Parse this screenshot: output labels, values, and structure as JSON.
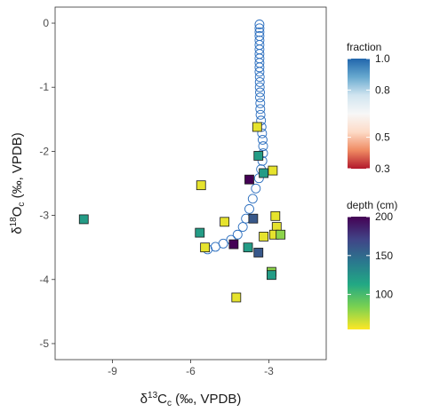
{
  "chart_data": {
    "type": "scatter",
    "xlabel": "δ13Cc (‰, VPDB)",
    "ylabel": "δ18Oc (‰, VPDB)",
    "xlim": [
      -11.2,
      -0.8
    ],
    "ylim": [
      -5.25,
      0.25
    ],
    "x_ticks": [
      -9,
      -6,
      -3
    ],
    "y_ticks": [
      0,
      -1,
      -2,
      -3,
      -4,
      -5
    ],
    "grid": false,
    "fraction_series": {
      "name": "fraction",
      "marker": "open circle",
      "color": "#2c6fbf",
      "points": [
        [
          -3.36,
          -0.02
        ],
        [
          -3.36,
          -0.08
        ],
        [
          -3.36,
          -0.14
        ],
        [
          -3.36,
          -0.2
        ],
        [
          -3.36,
          -0.27
        ],
        [
          -3.36,
          -0.34
        ],
        [
          -3.36,
          -0.41
        ],
        [
          -3.36,
          -0.48
        ],
        [
          -3.36,
          -0.55
        ],
        [
          -3.36,
          -0.62
        ],
        [
          -3.36,
          -0.69
        ],
        [
          -3.36,
          -0.76
        ],
        [
          -3.35,
          -0.84
        ],
        [
          -3.35,
          -0.92
        ],
        [
          -3.35,
          -1.0
        ],
        [
          -3.34,
          -1.08
        ],
        [
          -3.34,
          -1.16
        ],
        [
          -3.33,
          -1.25
        ],
        [
          -3.33,
          -1.34
        ],
        [
          -3.32,
          -1.43
        ],
        [
          -3.3,
          -1.52
        ],
        [
          -3.28,
          -1.62
        ],
        [
          -3.26,
          -1.72
        ],
        [
          -3.24,
          -1.82
        ],
        [
          -3.22,
          -1.92
        ],
        [
          -3.22,
          -2.03
        ],
        [
          -3.25,
          -2.15
        ],
        [
          -3.3,
          -2.28
        ],
        [
          -3.38,
          -2.42
        ],
        [
          -3.5,
          -2.58
        ],
        [
          -3.62,
          -2.74
        ],
        [
          -3.75,
          -2.9
        ],
        [
          -3.88,
          -3.05
        ],
        [
          -4.0,
          -3.18
        ],
        [
          -4.2,
          -3.3
        ],
        [
          -4.45,
          -3.38
        ],
        [
          -4.75,
          -3.44
        ],
        [
          -5.05,
          -3.49
        ],
        [
          -5.35,
          -3.53
        ]
      ]
    },
    "depth_series": {
      "name": "depth (cm)",
      "marker": "filled square",
      "points": [
        [
          -10.1,
          -3.06,
          120
        ],
        [
          -5.6,
          -2.53,
          60
        ],
        [
          -5.65,
          -3.27,
          120
        ],
        [
          -5.45,
          -3.5,
          60
        ],
        [
          -4.7,
          -3.1,
          60
        ],
        [
          -4.35,
          -3.45,
          200
        ],
        [
          -4.25,
          -4.28,
          60
        ],
        [
          -3.8,
          -3.5,
          120
        ],
        [
          -3.75,
          -2.44,
          200
        ],
        [
          -3.6,
          -3.05,
          160
        ],
        [
          -3.45,
          -1.62,
          60
        ],
        [
          -3.4,
          -2.07,
          120
        ],
        [
          -3.4,
          -3.58,
          160
        ],
        [
          -3.2,
          -2.34,
          120
        ],
        [
          -3.2,
          -3.33,
          60
        ],
        [
          -2.85,
          -2.3,
          60
        ],
        [
          -2.9,
          -3.88,
          80
        ],
        [
          -2.9,
          -3.93,
          120
        ],
        [
          -2.75,
          -3.01,
          60
        ],
        [
          -2.7,
          -3.18,
          60
        ],
        [
          -2.8,
          -3.3,
          60
        ],
        [
          -2.55,
          -3.3,
          80
        ]
      ]
    },
    "legends": [
      {
        "title": "fraction",
        "scale": "diverging",
        "range": [
          0.3,
          1.0
        ],
        "labels": [
          "1.0",
          "0.8",
          "0.5",
          "0.3"
        ],
        "label_values": [
          1.0,
          0.8,
          0.5,
          0.3
        ],
        "colors": [
          "#b2182b",
          "#ef8a62",
          "#fddbc7",
          "#f7f7f7",
          "#d1e5f0",
          "#67a9cf",
          "#2166ac"
        ]
      },
      {
        "title": "depth (cm)",
        "scale": "viridis",
        "range": [
          55,
          200
        ],
        "labels": [
          "200",
          "150",
          "100"
        ],
        "label_values": [
          200,
          150,
          100
        ],
        "colors": [
          "#fde725",
          "#7ad151",
          "#22a884",
          "#2a788e",
          "#414487",
          "#440154"
        ]
      }
    ],
    "legend_position": "right"
  }
}
